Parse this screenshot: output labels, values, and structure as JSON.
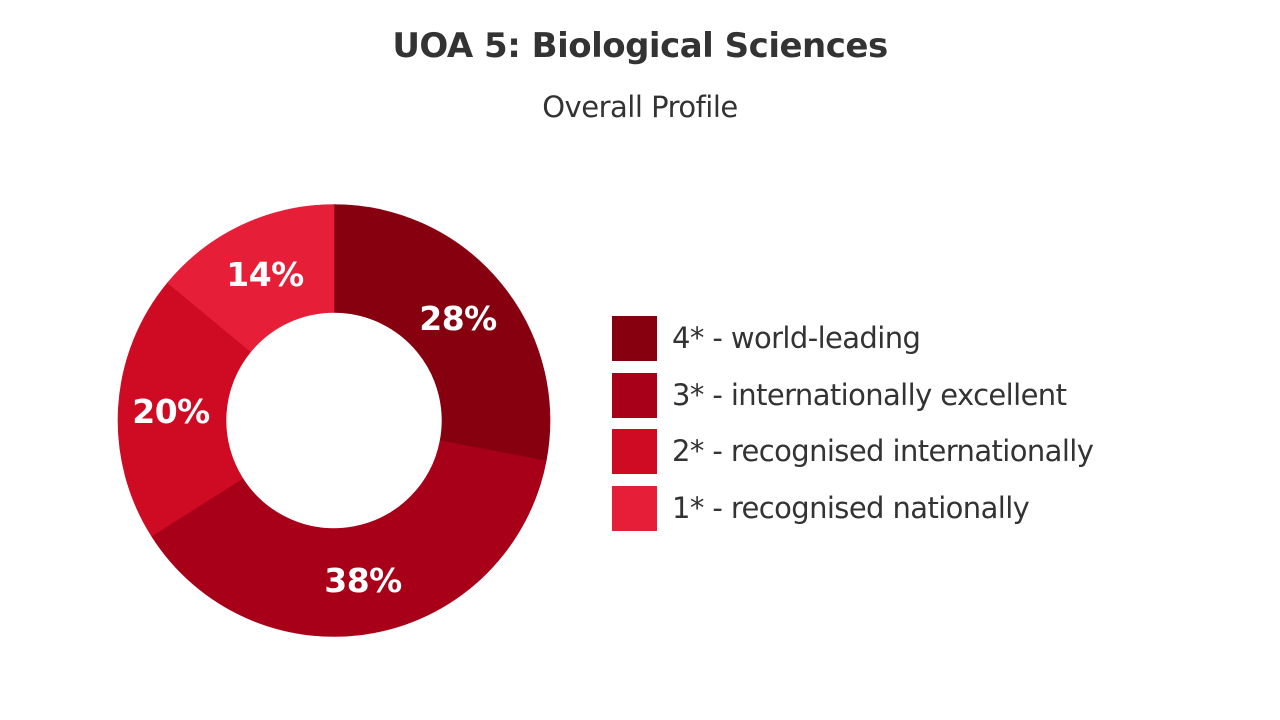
{
  "header": {
    "title": "UOA 5: Biological Sciences",
    "subtitle": "Overall Profile"
  },
  "chart_data": {
    "type": "pie",
    "variant": "donut",
    "title": "UOA 5: Biological Sciences",
    "subtitle": "Overall Profile",
    "categories": [
      "4* - world-leading",
      "3* - internationally excellent",
      "2* - recognised internationally",
      "1* - recognised nationally"
    ],
    "values": [
      28,
      38,
      20,
      14
    ],
    "unit": "%",
    "data_labels": [
      "28%",
      "38%",
      "20%",
      "14%"
    ],
    "colors": [
      "#870010",
      "#A80018",
      "#CF0B24",
      "#E61E37"
    ],
    "start_angle": "12 o'clock",
    "direction": "clockwise",
    "legend_position": "right",
    "hole_ratio": 0.5
  },
  "legend": {
    "items": [
      {
        "label": "4* - world-leading",
        "color": "#870010"
      },
      {
        "label": "3* - internationally excellent",
        "color": "#A80018"
      },
      {
        "label": "2* - recognised internationally",
        "color": "#CF0B24"
      },
      {
        "label": "1* - recognised nationally",
        "color": "#E61E37"
      }
    ]
  }
}
